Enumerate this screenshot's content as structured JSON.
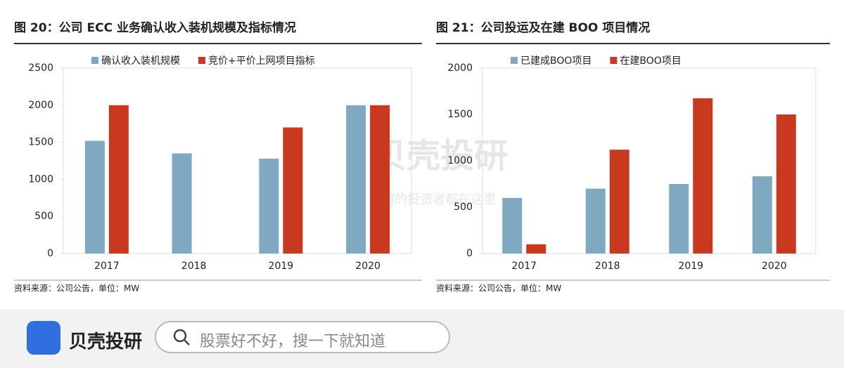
{
  "chart_data": [
    {
      "type": "bar",
      "title": "图 20：公司 ECC 业务确认收入装机规模及指标情况",
      "categories": [
        "2017",
        "2018",
        "2019",
        "2020"
      ],
      "series": [
        {
          "name": "确认收入装机规模",
          "color": "#7fa9c0",
          "values": [
            1520,
            1350,
            1280,
            2000
          ]
        },
        {
          "name": "竞价+平价上网项目指标",
          "color": "#c8391f",
          "values": [
            2000,
            null,
            1700,
            2000
          ]
        }
      ],
      "ylim": [
        0,
        2500
      ],
      "yticks": [
        0,
        500,
        1000,
        1500,
        2000,
        2500
      ],
      "source": "资料来源：公司公告，单位：MW"
    },
    {
      "type": "bar",
      "title": "图 21：公司投运及在建 BOO 项目情况",
      "categories": [
        "2017",
        "2018",
        "2019",
        "2020"
      ],
      "series": [
        {
          "name": "已建成BOO项目",
          "color": "#7fa9c0",
          "values": [
            600,
            700,
            750,
            833
          ]
        },
        {
          "name": "在建BOO项目",
          "color": "#c8391f",
          "values": [
            100,
            1120,
            1675,
            1500
          ]
        }
      ],
      "ylim": [
        0,
        2000
      ],
      "yticks": [
        0,
        500,
        1000,
        1500,
        2000
      ],
      "source": "资料来源：公司公告，单位：MW"
    }
  ],
  "watermark": {
    "brand": "贝壳投研",
    "slogan": "聪明的投资者都在这里"
  },
  "footer": {
    "brand": "贝壳投研",
    "search": "股票好不好，搜一下就知道"
  }
}
